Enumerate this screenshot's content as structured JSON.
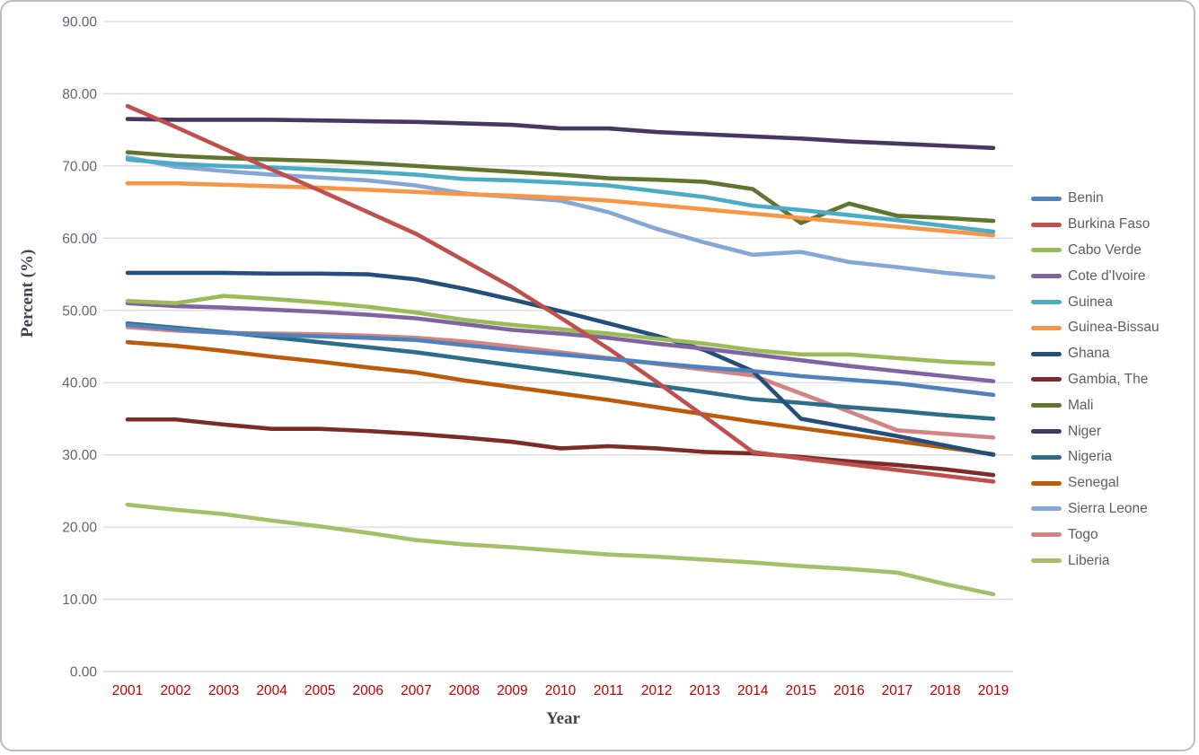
{
  "chart_data": {
    "type": "line",
    "title": "",
    "xlabel": "Year",
    "ylabel": "Percent (%)",
    "ylim": [
      0,
      90
    ],
    "ytick_step": 10,
    "y_tick_labels": [
      "0.00",
      "10.00",
      "20.00",
      "30.00",
      "40.00",
      "50.00",
      "60.00",
      "70.00",
      "80.00",
      "90.00"
    ],
    "grid": "horizontal",
    "legend_position": "right",
    "x_tick_label_color": "#c00000",
    "y_tick_label_color": "#6b6171",
    "gridline_color": "#d9d9d9",
    "x": [
      2001,
      2002,
      2003,
      2004,
      2005,
      2006,
      2007,
      2008,
      2009,
      2010,
      2011,
      2012,
      2013,
      2014,
      2015,
      2016,
      2017,
      2018,
      2019
    ],
    "series": [
      {
        "name": "Benin",
        "color": "#4f81bd",
        "values": [
          48.0,
          47.4,
          46.9,
          46.6,
          46.4,
          46.2,
          45.9,
          45.2,
          44.5,
          43.9,
          43.3,
          42.7,
          42.1,
          41.6,
          40.9,
          40.4,
          39.9,
          39.1,
          38.3
        ]
      },
      {
        "name": "Burkina Faso",
        "color": "#c0504d",
        "values": [
          78.3,
          75.4,
          72.4,
          69.5,
          66.6,
          63.6,
          60.6,
          56.9,
          53.2,
          49.0,
          44.7,
          40.1,
          35.3,
          30.4,
          29.5,
          28.7,
          27.9,
          27.1,
          26.3
        ]
      },
      {
        "name": "Cabo Verde",
        "color": "#9bbb59",
        "values": [
          51.3,
          51.0,
          52.0,
          51.6,
          51.1,
          50.5,
          49.7,
          48.7,
          48.0,
          47.4,
          46.8,
          46.1,
          45.4,
          44.5,
          43.9,
          43.9,
          43.4,
          42.9,
          42.6
        ]
      },
      {
        "name": "Cote d'Ivoire",
        "color": "#8064a2",
        "values": [
          51.0,
          50.6,
          50.4,
          50.1,
          49.8,
          49.4,
          48.9,
          48.1,
          47.3,
          46.8,
          46.2,
          45.4,
          44.7,
          43.9,
          43.1,
          42.3,
          41.6,
          40.9,
          40.2
        ]
      },
      {
        "name": "Guinea",
        "color": "#4bacc6",
        "values": [
          70.9,
          70.3,
          70.0,
          69.8,
          69.5,
          69.2,
          68.8,
          68.2,
          68.0,
          67.7,
          67.3,
          66.5,
          65.7,
          64.5,
          63.9,
          63.2,
          62.5,
          61.7,
          60.9
        ]
      },
      {
        "name": "Guinea-Bissau",
        "color": "#f79646",
        "values": [
          67.6,
          67.6,
          67.4,
          67.2,
          67.0,
          66.7,
          66.4,
          66.1,
          65.9,
          65.6,
          65.2,
          64.6,
          64.0,
          63.4,
          62.8,
          62.2,
          61.6,
          61.0,
          60.4
        ]
      },
      {
        "name": "Ghana",
        "color": "#234e7d",
        "values": [
          55.2,
          55.2,
          55.2,
          55.1,
          55.1,
          55.0,
          54.3,
          53.0,
          51.5,
          49.9,
          48.2,
          46.5,
          44.5,
          41.6,
          35.0,
          33.8,
          32.6,
          31.3,
          30.0
        ]
      },
      {
        "name": "Gambia, The",
        "color": "#7b2c29",
        "values": [
          34.9,
          34.9,
          34.2,
          33.6,
          33.6,
          33.3,
          32.9,
          32.4,
          31.8,
          30.9,
          31.2,
          30.9,
          30.4,
          30.2,
          29.7,
          29.1,
          28.6,
          28.0,
          27.2
        ]
      },
      {
        "name": "Mali",
        "color": "#5f7530",
        "values": [
          71.9,
          71.4,
          71.1,
          70.9,
          70.7,
          70.4,
          70.0,
          69.6,
          69.2,
          68.8,
          68.3,
          68.1,
          67.8,
          66.8,
          62.1,
          64.8,
          63.1,
          62.8,
          62.4
        ]
      },
      {
        "name": "Niger",
        "color": "#483760",
        "values": [
          76.5,
          76.4,
          76.4,
          76.4,
          76.3,
          76.2,
          76.1,
          75.9,
          75.7,
          75.2,
          75.2,
          74.7,
          74.4,
          74.1,
          73.8,
          73.4,
          73.1,
          72.8,
          72.5
        ]
      },
      {
        "name": "Nigeria",
        "color": "#2c6e8a",
        "values": [
          48.2,
          47.6,
          47.0,
          46.3,
          45.6,
          44.9,
          44.2,
          43.3,
          42.4,
          41.5,
          40.6,
          39.6,
          38.7,
          37.7,
          37.2,
          36.6,
          36.1,
          35.5,
          35.0
        ]
      },
      {
        "name": "Senegal",
        "color": "#bc5b0b",
        "values": [
          45.6,
          45.1,
          44.4,
          43.6,
          42.9,
          42.1,
          41.4,
          40.3,
          39.4,
          38.5,
          37.6,
          36.6,
          35.6,
          34.6,
          33.7,
          32.8,
          31.9,
          31.0,
          30.1
        ]
      },
      {
        "name": "Sierra Leone",
        "color": "#84a7d8",
        "values": [
          71.2,
          69.9,
          69.3,
          68.8,
          68.4,
          68.0,
          67.3,
          66.2,
          65.7,
          65.2,
          63.6,
          61.3,
          59.4,
          57.7,
          58.1,
          56.7,
          56.0,
          55.2,
          54.6
        ]
      },
      {
        "name": "Togo",
        "color": "#d28482",
        "values": [
          47.7,
          47.2,
          46.9,
          46.8,
          46.7,
          46.5,
          46.2,
          45.7,
          45.0,
          44.2,
          43.4,
          42.6,
          41.8,
          41.0,
          38.5,
          36.0,
          33.4,
          32.9,
          32.4
        ]
      },
      {
        "name": "Liberia",
        "color": "#a2c16a",
        "values": [
          23.1,
          22.4,
          21.8,
          20.9,
          20.1,
          19.2,
          18.2,
          17.6,
          17.2,
          16.7,
          16.2,
          15.9,
          15.5,
          15.1,
          14.6,
          14.2,
          13.7,
          12.1,
          10.7
        ]
      }
    ]
  }
}
